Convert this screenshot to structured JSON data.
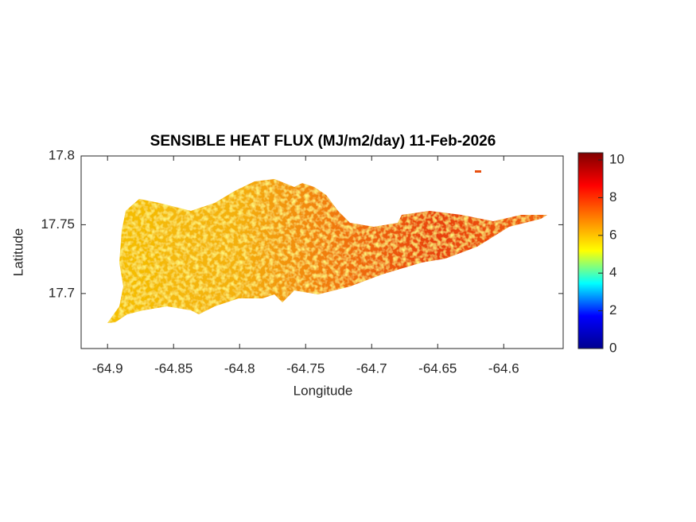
{
  "chart_data": {
    "type": "map",
    "title": "SENSIBLE HEAT FLUX (MJ/m2/day) 11-Feb-2026",
    "xlabel": "Longitude",
    "ylabel": "Latitude",
    "xlim": [
      -64.92,
      -64.555
    ],
    "xticks": [
      -64.9,
      -64.85,
      -64.8,
      -64.75,
      -64.7,
      -64.65,
      -64.6
    ],
    "ylim": [
      17.66,
      17.8
    ],
    "yticks": [
      17.7,
      17.75,
      17.8
    ],
    "clim": [
      0,
      10.38
    ],
    "cticks": [
      0,
      2,
      4,
      6,
      8,
      10
    ],
    "colormap": [
      "#00008f",
      "#0000ff",
      "#00ffff",
      "#ffff00",
      "#ff8000",
      "#ff0000",
      "#800000"
    ]
  }
}
